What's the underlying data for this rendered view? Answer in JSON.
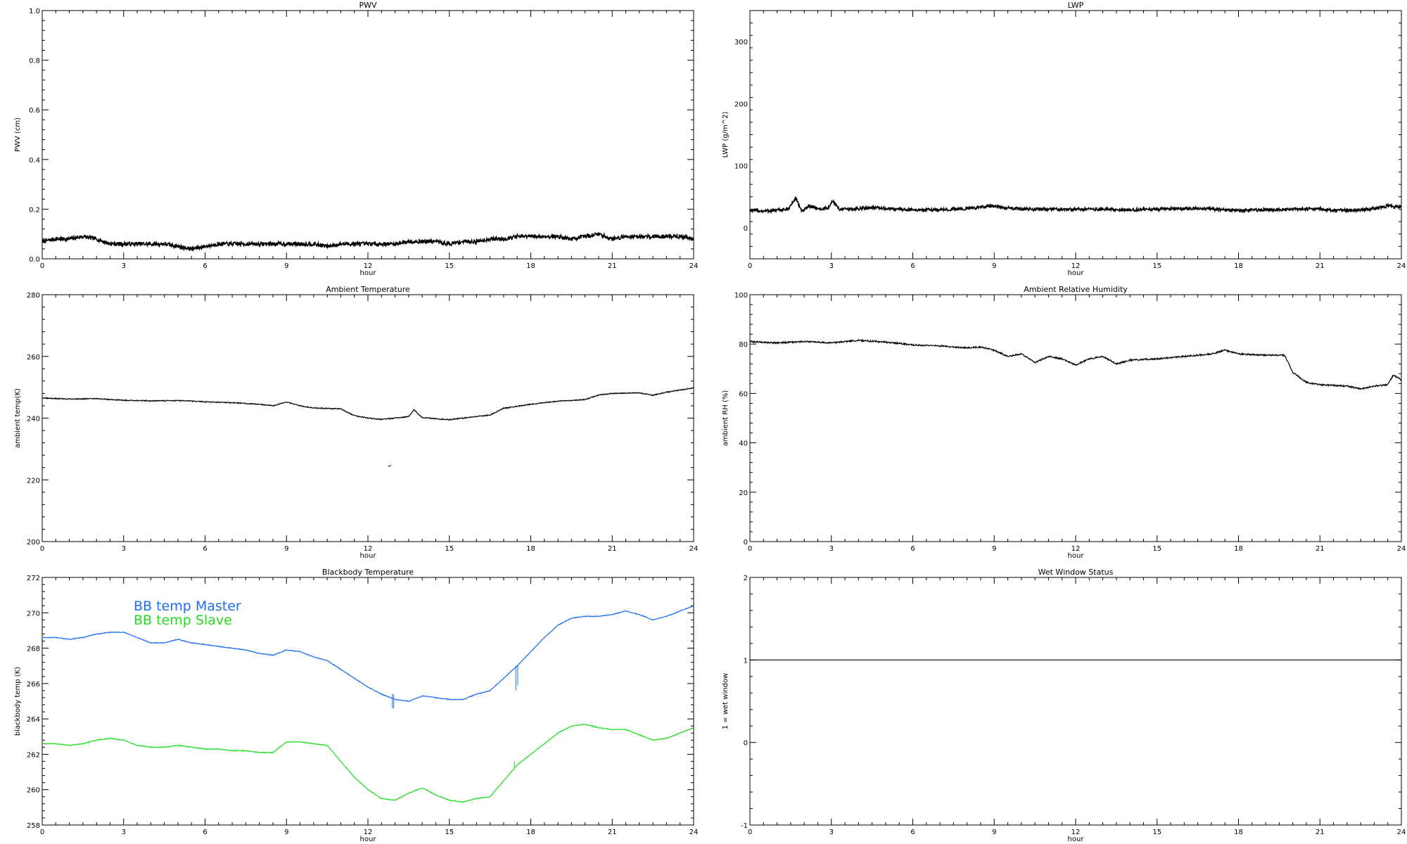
{
  "chart_data": [
    {
      "type": "line",
      "title": "PWV",
      "xlabel": "hour",
      "ylabel": "PWV (cm)",
      "xlim": [
        0,
        24
      ],
      "ylim": [
        0,
        1.0
      ],
      "xticks": [
        "0",
        "3",
        "6",
        "9",
        "12",
        "15",
        "18",
        "21",
        "24"
      ],
      "yticks": [
        "0.0",
        "0.2",
        "0.4",
        "0.6",
        "0.8",
        "1.0"
      ],
      "ytick_values": [
        0,
        0.2,
        0.4,
        0.6,
        0.8,
        1.0
      ],
      "noise": 0.008,
      "series": [
        {
          "color": "#000000",
          "x": [
            0,
            0.5,
            1,
            1.5,
            2,
            2.5,
            3,
            3.5,
            4,
            4.5,
            5,
            5.5,
            6,
            6.5,
            7,
            7.5,
            8,
            8.5,
            9,
            9.5,
            10,
            10.5,
            11,
            11.5,
            12,
            12.5,
            13,
            13.5,
            14,
            14.5,
            15,
            15.5,
            16,
            16.5,
            17,
            17.5,
            18,
            18.5,
            19,
            19.5,
            20,
            20.5,
            21,
            21.5,
            22,
            22.5,
            23,
            23.5,
            24
          ],
          "y": [
            0.07,
            0.08,
            0.08,
            0.09,
            0.08,
            0.06,
            0.06,
            0.06,
            0.06,
            0.06,
            0.05,
            0.04,
            0.05,
            0.06,
            0.06,
            0.06,
            0.06,
            0.06,
            0.06,
            0.06,
            0.06,
            0.05,
            0.06,
            0.06,
            0.06,
            0.06,
            0.06,
            0.07,
            0.07,
            0.07,
            0.06,
            0.07,
            0.07,
            0.08,
            0.08,
            0.09,
            0.09,
            0.09,
            0.09,
            0.08,
            0.09,
            0.1,
            0.08,
            0.09,
            0.09,
            0.09,
            0.09,
            0.09,
            0.08
          ]
        }
      ]
    },
    {
      "type": "line",
      "title": "LWP",
      "xlabel": "hour",
      "ylabel": "LWP (g/m^2)",
      "xlim": [
        0,
        24
      ],
      "ylim": [
        -50,
        350
      ],
      "xticks": [
        "0",
        "3",
        "6",
        "9",
        "12",
        "15",
        "18",
        "21",
        "24"
      ],
      "yticks": [
        "0",
        "100",
        "200",
        "300"
      ],
      "ytick_values": [
        0,
        100,
        200,
        300
      ],
      "noise": 2.5,
      "series": [
        {
          "color": "#000000",
          "x": [
            0,
            0.5,
            1,
            1.4,
            1.7,
            1.9,
            2.2,
            2.6,
            2.9,
            3.05,
            3.3,
            3.8,
            4.5,
            5,
            6,
            7,
            8,
            8.8,
            9.5,
            10,
            11,
            12,
            13,
            14,
            15,
            16,
            17,
            18,
            19,
            20,
            21,
            21.5,
            22,
            22.5,
            23,
            23.5,
            24
          ],
          "y": [
            28,
            27,
            28,
            30,
            48,
            26,
            35,
            30,
            32,
            44,
            30,
            30,
            33,
            31,
            29,
            29,
            31,
            35,
            32,
            30,
            30,
            30,
            30,
            29,
            30,
            31,
            30,
            28,
            29,
            30,
            31,
            28,
            28,
            29,
            31,
            35,
            33
          ]
        }
      ]
    },
    {
      "type": "line",
      "title": "Ambient Temperature",
      "xlabel": "hour",
      "ylabel": "ambient temp(K)",
      "xlim": [
        0,
        24
      ],
      "ylim": [
        200,
        280
      ],
      "xticks": [
        "0",
        "3",
        "6",
        "9",
        "12",
        "15",
        "18",
        "21",
        "24"
      ],
      "yticks": [
        "200",
        "220",
        "240",
        "260",
        "280"
      ],
      "ytick_values": [
        200,
        220,
        240,
        260,
        280
      ],
      "noise": 0.15,
      "series": [
        {
          "color": "#000000",
          "x": [
            0,
            1,
            2,
            3,
            4,
            5,
            6,
            7,
            8,
            8.5,
            9,
            9.5,
            10,
            11,
            11.5,
            12,
            12.5,
            13,
            13.5,
            13.7,
            14,
            14.5,
            15,
            16,
            16.5,
            17,
            17.5,
            18,
            19,
            20,
            20.5,
            21,
            22,
            22.5,
            23,
            24
          ],
          "y": [
            246.5,
            246.2,
            246.3,
            245.8,
            245.6,
            245.7,
            245.3,
            245,
            244.5,
            244,
            245.2,
            244,
            243.3,
            243,
            240.8,
            240,
            239.6,
            240,
            240.5,
            242.7,
            240.2,
            239.8,
            239.5,
            240.5,
            241,
            243.2,
            243.8,
            244.5,
            245.5,
            246,
            247.5,
            248,
            248.2,
            247.4,
            248.4,
            249.8
          ]
        }
      ],
      "annotations": [
        {
          "x": 12.8,
          "y": 224.5
        }
      ]
    },
    {
      "type": "line",
      "title": "Ambient Relative Humidity",
      "xlabel": "hour",
      "ylabel": "ambient RH (%)",
      "xlim": [
        0,
        24
      ],
      "ylim": [
        0,
        100
      ],
      "xticks": [
        "0",
        "3",
        "6",
        "9",
        "12",
        "15",
        "18",
        "21",
        "24"
      ],
      "yticks": [
        "0",
        "20",
        "40",
        "60",
        "80",
        "100"
      ],
      "ytick_values": [
        0,
        20,
        40,
        60,
        80,
        100
      ],
      "noise": 0.3,
      "series": [
        {
          "color": "#000000",
          "x": [
            0,
            1,
            2,
            3,
            4,
            5,
            6,
            7,
            8,
            8.5,
            9,
            9.5,
            10,
            10.5,
            11,
            11.5,
            12,
            12.5,
            13,
            13.5,
            14,
            15,
            16,
            17,
            17.5,
            18,
            19,
            19.7,
            20,
            20.5,
            21,
            22,
            22.5,
            23,
            23.5,
            23.7,
            24
          ],
          "y": [
            81,
            80.5,
            81,
            80.5,
            81.5,
            80.8,
            79.7,
            79.2,
            78.5,
            78.8,
            77.5,
            75,
            76,
            72.5,
            75,
            74,
            71.5,
            74,
            75,
            72,
            73.5,
            74,
            75,
            76,
            77.5,
            76,
            75.5,
            75.5,
            68.5,
            64.5,
            63.5,
            63,
            61.8,
            63,
            63.5,
            67.5,
            65.5
          ]
        }
      ]
    },
    {
      "type": "line",
      "title": "Blackbody Temperature",
      "xlabel": "hour",
      "ylabel": "blackbody temp (K)",
      "xlim": [
        0,
        24
      ],
      "ylim": [
        258,
        272
      ],
      "xticks": [
        "0",
        "3",
        "6",
        "9",
        "12",
        "15",
        "18",
        "21",
        "24"
      ],
      "yticks": [
        "258",
        "260",
        "262",
        "264",
        "266",
        "268",
        "270",
        "272"
      ],
      "ytick_values": [
        258,
        260,
        262,
        264,
        266,
        268,
        270,
        272
      ],
      "noise": 0.02,
      "legend": [
        {
          "label": "BB temp Master",
          "color": "#1f6ef2"
        },
        {
          "label": "BB temp Slave",
          "color": "#22dd22"
        }
      ],
      "series": [
        {
          "color": "#1f6ef2",
          "x": [
            0,
            0.5,
            1,
            1.5,
            2,
            2.5,
            3,
            3.5,
            4,
            4.5,
            5,
            5.5,
            6,
            6.5,
            7,
            7.5,
            8,
            8.5,
            9,
            9.5,
            10,
            10.5,
            11,
            11.5,
            12,
            12.5,
            13,
            13.5,
            14,
            14.5,
            15,
            15.5,
            16,
            16.5,
            17,
            17.5,
            18,
            18.5,
            19,
            19.5,
            20,
            20.5,
            21,
            21.5,
            22,
            22.5,
            23,
            23.5,
            24
          ],
          "y": [
            268.6,
            268.6,
            268.5,
            268.6,
            268.8,
            268.9,
            268.9,
            268.6,
            268.3,
            268.3,
            268.5,
            268.3,
            268.2,
            268.1,
            268,
            267.9,
            267.7,
            267.6,
            267.9,
            267.8,
            267.5,
            267.3,
            266.8,
            266.3,
            265.8,
            265.4,
            265.1,
            265,
            265.3,
            265.2,
            265.1,
            265.1,
            265.4,
            265.6,
            266.3,
            267,
            267.8,
            268.6,
            269.3,
            269.7,
            269.8,
            269.8,
            269.9,
            270.1,
            269.9,
            269.6,
            269.8,
            270.1,
            270.4
          ]
        },
        {
          "color": "#22dd22",
          "x": [
            0,
            0.5,
            1,
            1.5,
            2,
            2.5,
            3,
            3.5,
            4,
            4.5,
            5,
            5.5,
            6,
            6.5,
            7,
            7.5,
            8,
            8.5,
            9,
            9.5,
            10,
            10.5,
            11,
            11.5,
            12,
            12.5,
            13,
            13.5,
            14,
            14.5,
            15,
            15.5,
            16,
            16.5,
            17,
            17.5,
            18,
            18.5,
            19,
            19.5,
            20,
            20.5,
            21,
            21.5,
            22,
            22.5,
            23,
            23.5,
            24
          ],
          "y": [
            262.6,
            262.6,
            262.5,
            262.6,
            262.8,
            262.9,
            262.8,
            262.5,
            262.4,
            262.4,
            262.5,
            262.4,
            262.3,
            262.3,
            262.2,
            262.2,
            262.1,
            262.1,
            262.7,
            262.7,
            262.6,
            262.5,
            261.6,
            260.7,
            260,
            259.5,
            259.4,
            259.8,
            260.1,
            259.7,
            259.4,
            259.3,
            259.5,
            259.6,
            260.5,
            261.4,
            262,
            262.6,
            263.2,
            263.6,
            263.7,
            263.5,
            263.4,
            263.4,
            263.1,
            262.8,
            262.9,
            263.2,
            263.5
          ]
        }
      ],
      "dropouts": [
        {
          "x": 12.9,
          "y_from": 265.4,
          "y_to": 264.6,
          "color": "#1f6ef2"
        },
        {
          "x": 12.95,
          "y_from": 265.4,
          "y_to": 264.6,
          "color": "#1f6ef2"
        },
        {
          "x": 17.45,
          "y_from": 267.0,
          "y_to": 265.6,
          "color": "#1f6ef2"
        },
        {
          "x": 17.52,
          "y_from": 267.0,
          "y_to": 265.9,
          "color": "#1f6ef2"
        },
        {
          "x": 17.4,
          "y_from": 261.6,
          "y_to": 261.2,
          "color": "#22dd22"
        }
      ]
    },
    {
      "type": "line",
      "title": "Wet Window Status",
      "xlabel": "hour",
      "ylabel": "1 = wet window",
      "xlim": [
        0,
        24
      ],
      "ylim": [
        -1,
        2
      ],
      "xticks": [
        "0",
        "3",
        "6",
        "9",
        "12",
        "15",
        "18",
        "21",
        "24"
      ],
      "yticks": [
        "-1",
        "0",
        "1",
        "2"
      ],
      "ytick_values": [
        -1,
        0,
        1,
        2
      ],
      "noise": 0,
      "series": [
        {
          "color": "#000000",
          "x": [
            0,
            24
          ],
          "y": [
            1,
            1
          ]
        }
      ]
    }
  ]
}
